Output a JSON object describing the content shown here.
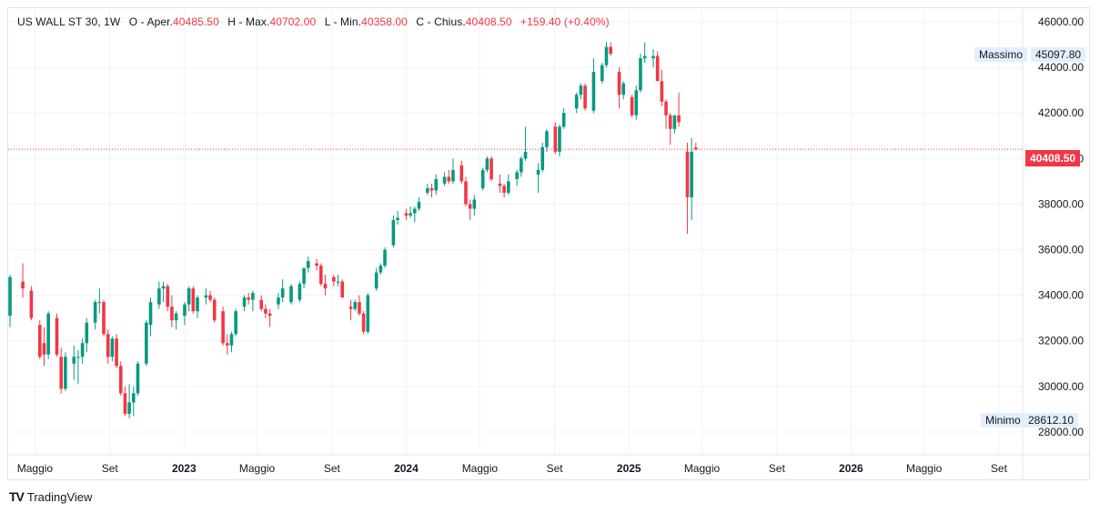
{
  "legend": {
    "symbol": "US WALL ST 30, 1W",
    "open_label": "O - Aper.",
    "open_value": "40485.50",
    "high_label": "H - Max.",
    "high_value": "40702.00",
    "low_label": "L - Min.",
    "low_value": "40358.00",
    "close_label": "C - Chius.",
    "close_value": "40408.50",
    "change": "+159.40 (+0.40%)"
  },
  "tags": {
    "high_label": "Massimo",
    "high_value": "45097.80",
    "low_label": "Minimo",
    "low_value": "28612.10",
    "last_value": "40408.50"
  },
  "brand": {
    "name": "TradingView",
    "logo": "tradingview-logo-icon"
  },
  "colors": {
    "up": "#089981",
    "down": "#f23645",
    "last_line": "#f23645",
    "grid": "#f0f3fa"
  },
  "chart_data": {
    "type": "candlestick",
    "interval": "1W",
    "y_ticks": [
      28000,
      30000,
      32000,
      34000,
      36000,
      38000,
      40000,
      42000,
      44000,
      46000
    ],
    "y_tick_labels": [
      "28000.00",
      "30000.00",
      "32000.00",
      "34000.00",
      "36000.00",
      "38000.00",
      "40000.00",
      "42000.00",
      "44000.00",
      "46000.00"
    ],
    "ylim": [
      27000,
      46600
    ],
    "x_ticks": [
      {
        "label": "Maggio",
        "date": "2022-05-01"
      },
      {
        "label": "Set",
        "date": "2022-09-01"
      },
      {
        "label": "2023",
        "date": "2023-01-01"
      },
      {
        "label": "Maggio",
        "date": "2023-05-01"
      },
      {
        "label": "Set",
        "date": "2023-09-01"
      },
      {
        "label": "2024",
        "date": "2024-01-01"
      },
      {
        "label": "Maggio",
        "date": "2024-05-01"
      },
      {
        "label": "Set",
        "date": "2024-09-01"
      },
      {
        "label": "2025",
        "date": "2025-01-01"
      },
      {
        "label": "Maggio",
        "date": "2025-05-01"
      },
      {
        "label": "Set",
        "date": "2025-09-01"
      },
      {
        "label": "2026",
        "date": "2026-01-01"
      },
      {
        "label": "Maggio",
        "date": "2026-05-01"
      },
      {
        "label": "Set",
        "date": "2026-09-01"
      }
    ],
    "xlim": [
      "2022-03-18",
      "2026-10-10"
    ],
    "last_price": 40408.5,
    "period_high": 45097.8,
    "period_low": 28612.1,
    "candles": [
      {
        "d": "2022-03-21",
        "o": 33100,
        "h": 34900,
        "l": 32600,
        "c": 34800
      },
      {
        "d": "2022-04-11",
        "o": 34600,
        "h": 35400,
        "l": 33900,
        "c": 34300
      },
      {
        "d": "2022-04-25",
        "o": 34200,
        "h": 34400,
        "l": 32900,
        "c": 33000
      },
      {
        "d": "2022-05-09",
        "o": 32700,
        "h": 32900,
        "l": 31200,
        "c": 31300
      },
      {
        "d": "2022-05-16",
        "o": 31900,
        "h": 32600,
        "l": 30900,
        "c": 31400
      },
      {
        "d": "2022-05-23",
        "o": 31400,
        "h": 33300,
        "l": 31200,
        "c": 33200
      },
      {
        "d": "2022-06-06",
        "o": 33000,
        "h": 33200,
        "l": 31300,
        "c": 31400
      },
      {
        "d": "2022-06-13",
        "o": 31300,
        "h": 31700,
        "l": 29700,
        "c": 29900
      },
      {
        "d": "2022-06-20",
        "o": 29900,
        "h": 31500,
        "l": 29800,
        "c": 31300
      },
      {
        "d": "2022-07-04",
        "o": 31000,
        "h": 31800,
        "l": 30300,
        "c": 31300
      },
      {
        "d": "2022-07-11",
        "o": 31300,
        "h": 31600,
        "l": 30100,
        "c": 31300
      },
      {
        "d": "2022-07-18",
        "o": 31300,
        "h": 32100,
        "l": 31000,
        "c": 31900
      },
      {
        "d": "2022-07-25",
        "o": 31900,
        "h": 33000,
        "l": 31500,
        "c": 32800
      },
      {
        "d": "2022-08-08",
        "o": 32800,
        "h": 33800,
        "l": 32500,
        "c": 33700
      },
      {
        "d": "2022-08-15",
        "o": 33700,
        "h": 34300,
        "l": 33200,
        "c": 33700
      },
      {
        "d": "2022-08-22",
        "o": 33700,
        "h": 33800,
        "l": 32200,
        "c": 32300
      },
      {
        "d": "2022-08-29",
        "o": 32300,
        "h": 32500,
        "l": 31000,
        "c": 31300
      },
      {
        "d": "2022-09-05",
        "o": 31300,
        "h": 32200,
        "l": 31100,
        "c": 32100
      },
      {
        "d": "2022-09-12",
        "o": 32100,
        "h": 32300,
        "l": 30800,
        "c": 30900
      },
      {
        "d": "2022-09-19",
        "o": 30900,
        "h": 31100,
        "l": 29600,
        "c": 29700
      },
      {
        "d": "2022-09-26",
        "o": 29700,
        "h": 30000,
        "l": 28700,
        "c": 28800
      },
      {
        "d": "2022-10-03",
        "o": 28800,
        "h": 30100,
        "l": 28600,
        "c": 29300
      },
      {
        "d": "2022-10-10",
        "o": 29300,
        "h": 30000,
        "l": 28700,
        "c": 29700
      },
      {
        "d": "2022-10-17",
        "o": 29700,
        "h": 31100,
        "l": 29600,
        "c": 31000
      },
      {
        "d": "2022-10-31",
        "o": 31000,
        "h": 32900,
        "l": 30900,
        "c": 32800
      },
      {
        "d": "2022-11-07",
        "o": 32700,
        "h": 33900,
        "l": 32200,
        "c": 33700
      },
      {
        "d": "2022-11-21",
        "o": 33600,
        "h": 34600,
        "l": 33400,
        "c": 34300
      },
      {
        "d": "2022-11-28",
        "o": 34300,
        "h": 34600,
        "l": 33700,
        "c": 34400
      },
      {
        "d": "2022-12-05",
        "o": 34400,
        "h": 34500,
        "l": 33300,
        "c": 33500
      },
      {
        "d": "2022-12-12",
        "o": 33500,
        "h": 34000,
        "l": 32600,
        "c": 32900
      },
      {
        "d": "2022-12-19",
        "o": 32900,
        "h": 33300,
        "l": 32500,
        "c": 33200
      },
      {
        "d": "2023-01-02",
        "o": 33100,
        "h": 33700,
        "l": 32700,
        "c": 33600
      },
      {
        "d": "2023-01-09",
        "o": 33600,
        "h": 34400,
        "l": 33300,
        "c": 34300
      },
      {
        "d": "2023-01-16",
        "o": 34300,
        "h": 34400,
        "l": 33200,
        "c": 33300
      },
      {
        "d": "2023-01-23",
        "o": 33300,
        "h": 34000,
        "l": 33000,
        "c": 33900
      },
      {
        "d": "2023-02-06",
        "o": 33900,
        "h": 34300,
        "l": 33600,
        "c": 34000
      },
      {
        "d": "2023-02-13",
        "o": 34000,
        "h": 34200,
        "l": 33700,
        "c": 33800
      },
      {
        "d": "2023-02-20",
        "o": 33800,
        "h": 33900,
        "l": 32800,
        "c": 32900
      },
      {
        "d": "2023-03-06",
        "o": 33300,
        "h": 33500,
        "l": 31800,
        "c": 31900
      },
      {
        "d": "2023-03-13",
        "o": 31900,
        "h": 32300,
        "l": 31400,
        "c": 31800
      },
      {
        "d": "2023-03-20",
        "o": 31800,
        "h": 32400,
        "l": 31500,
        "c": 32300
      },
      {
        "d": "2023-03-27",
        "o": 32300,
        "h": 33400,
        "l": 32200,
        "c": 33300
      },
      {
        "d": "2023-04-10",
        "o": 33500,
        "h": 34000,
        "l": 33300,
        "c": 33900
      },
      {
        "d": "2023-04-17",
        "o": 33900,
        "h": 34100,
        "l": 33600,
        "c": 33800
      },
      {
        "d": "2023-04-24",
        "o": 33800,
        "h": 34200,
        "l": 33300,
        "c": 34100
      },
      {
        "d": "2023-05-08",
        "o": 33800,
        "h": 34000,
        "l": 33300,
        "c": 33400
      },
      {
        "d": "2023-05-15",
        "o": 33400,
        "h": 33600,
        "l": 33000,
        "c": 33200
      },
      {
        "d": "2023-05-22",
        "o": 33200,
        "h": 33400,
        "l": 32600,
        "c": 33100
      },
      {
        "d": "2023-06-05",
        "o": 33600,
        "h": 34100,
        "l": 33400,
        "c": 33900
      },
      {
        "d": "2023-06-12",
        "o": 33900,
        "h": 34700,
        "l": 33700,
        "c": 34300
      },
      {
        "d": "2023-06-26",
        "o": 33700,
        "h": 34500,
        "l": 33600,
        "c": 34400
      },
      {
        "d": "2023-07-10",
        "o": 33800,
        "h": 34600,
        "l": 33700,
        "c": 34500
      },
      {
        "d": "2023-07-17",
        "o": 34500,
        "h": 35100,
        "l": 34300,
        "c": 35200
      },
      {
        "d": "2023-07-24",
        "o": 35200,
        "h": 35700,
        "l": 35000,
        "c": 35500
      },
      {
        "d": "2023-08-07",
        "o": 35400,
        "h": 35600,
        "l": 35100,
        "c": 35300
      },
      {
        "d": "2023-08-14",
        "o": 35300,
        "h": 35400,
        "l": 34400,
        "c": 34500
      },
      {
        "d": "2023-08-21",
        "o": 34500,
        "h": 34900,
        "l": 34000,
        "c": 34300
      },
      {
        "d": "2023-09-04",
        "o": 34800,
        "h": 34900,
        "l": 34400,
        "c": 34600
      },
      {
        "d": "2023-09-11",
        "o": 34600,
        "h": 34900,
        "l": 34400,
        "c": 34600
      },
      {
        "d": "2023-09-18",
        "o": 34600,
        "h": 34700,
        "l": 33900,
        "c": 33900
      },
      {
        "d": "2023-10-02",
        "o": 33500,
        "h": 33800,
        "l": 32900,
        "c": 33400
      },
      {
        "d": "2023-10-09",
        "o": 33400,
        "h": 33800,
        "l": 33300,
        "c": 33700
      },
      {
        "d": "2023-10-16",
        "o": 33700,
        "h": 34000,
        "l": 33100,
        "c": 33200
      },
      {
        "d": "2023-10-23",
        "o": 33200,
        "h": 33300,
        "l": 32300,
        "c": 32400
      },
      {
        "d": "2023-10-30",
        "o": 32400,
        "h": 34100,
        "l": 32300,
        "c": 34000
      },
      {
        "d": "2023-11-13",
        "o": 34300,
        "h": 35200,
        "l": 34200,
        "c": 35000
      },
      {
        "d": "2023-11-20",
        "o": 35000,
        "h": 35400,
        "l": 34900,
        "c": 35300
      },
      {
        "d": "2023-11-27",
        "o": 35300,
        "h": 36100,
        "l": 35200,
        "c": 36000
      },
      {
        "d": "2023-12-11",
        "o": 36200,
        "h": 37500,
        "l": 36100,
        "c": 37300
      },
      {
        "d": "2023-12-18",
        "o": 37300,
        "h": 37700,
        "l": 37100,
        "c": 37400
      },
      {
        "d": "2024-01-01",
        "o": 37600,
        "h": 37800,
        "l": 37300,
        "c": 37500
      },
      {
        "d": "2024-01-08",
        "o": 37500,
        "h": 37900,
        "l": 37400,
        "c": 37600
      },
      {
        "d": "2024-01-15",
        "o": 37600,
        "h": 37900,
        "l": 37200,
        "c": 37800
      },
      {
        "d": "2024-01-22",
        "o": 37800,
        "h": 38300,
        "l": 37700,
        "c": 38100
      },
      {
        "d": "2024-02-05",
        "o": 38500,
        "h": 38900,
        "l": 38400,
        "c": 38700
      },
      {
        "d": "2024-02-12",
        "o": 38700,
        "h": 38900,
        "l": 38300,
        "c": 38600
      },
      {
        "d": "2024-02-19",
        "o": 38600,
        "h": 39300,
        "l": 38400,
        "c": 39100
      },
      {
        "d": "2024-03-04",
        "o": 38900,
        "h": 39400,
        "l": 38800,
        "c": 39200
      },
      {
        "d": "2024-03-11",
        "o": 39200,
        "h": 39500,
        "l": 38900,
        "c": 39000
      },
      {
        "d": "2024-03-18",
        "o": 39000,
        "h": 40000,
        "l": 38900,
        "c": 39500
      },
      {
        "d": "2024-04-01",
        "o": 39700,
        "h": 39900,
        "l": 38900,
        "c": 39000
      },
      {
        "d": "2024-04-08",
        "o": 39000,
        "h": 39200,
        "l": 37900,
        "c": 38000
      },
      {
        "d": "2024-04-15",
        "o": 38000,
        "h": 38200,
        "l": 37300,
        "c": 37800
      },
      {
        "d": "2024-04-22",
        "o": 37800,
        "h": 38400,
        "l": 37500,
        "c": 38200
      },
      {
        "d": "2024-05-06",
        "o": 38700,
        "h": 39600,
        "l": 38600,
        "c": 39500
      },
      {
        "d": "2024-05-13",
        "o": 39500,
        "h": 40100,
        "l": 39400,
        "c": 40000
      },
      {
        "d": "2024-05-20",
        "o": 40000,
        "h": 40100,
        "l": 39000,
        "c": 39100
      },
      {
        "d": "2024-06-03",
        "o": 38900,
        "h": 39300,
        "l": 38500,
        "c": 38800
      },
      {
        "d": "2024-06-10",
        "o": 38800,
        "h": 38900,
        "l": 38300,
        "c": 38500
      },
      {
        "d": "2024-06-17",
        "o": 38500,
        "h": 39300,
        "l": 38400,
        "c": 39000
      },
      {
        "d": "2024-07-01",
        "o": 39100,
        "h": 39500,
        "l": 38800,
        "c": 39400
      },
      {
        "d": "2024-07-08",
        "o": 39400,
        "h": 40100,
        "l": 39200,
        "c": 40000
      },
      {
        "d": "2024-07-15",
        "o": 40000,
        "h": 41400,
        "l": 39900,
        "c": 40300
      },
      {
        "d": "2024-08-05",
        "o": 39300,
        "h": 39800,
        "l": 38500,
        "c": 39500
      },
      {
        "d": "2024-08-12",
        "o": 39500,
        "h": 40700,
        "l": 39400,
        "c": 40500
      },
      {
        "d": "2024-08-19",
        "o": 40500,
        "h": 41300,
        "l": 40300,
        "c": 41200
      },
      {
        "d": "2024-09-02",
        "o": 41400,
        "h": 41600,
        "l": 40200,
        "c": 40300
      },
      {
        "d": "2024-09-09",
        "o": 40300,
        "h": 41500,
        "l": 40100,
        "c": 41400
      },
      {
        "d": "2024-09-16",
        "o": 41400,
        "h": 42200,
        "l": 41300,
        "c": 42000
      },
      {
        "d": "2024-10-07",
        "o": 42200,
        "h": 42900,
        "l": 42000,
        "c": 42800
      },
      {
        "d": "2024-10-14",
        "o": 42800,
        "h": 43300,
        "l": 42600,
        "c": 43200
      },
      {
        "d": "2024-10-21",
        "o": 43200,
        "h": 43300,
        "l": 42100,
        "c": 42200
      },
      {
        "d": "2024-11-04",
        "o": 42100,
        "h": 44400,
        "l": 42000,
        "c": 43800
      },
      {
        "d": "2024-11-18",
        "o": 43400,
        "h": 44200,
        "l": 43300,
        "c": 44100
      },
      {
        "d": "2024-11-25",
        "o": 44100,
        "h": 45100,
        "l": 44000,
        "c": 44900
      },
      {
        "d": "2024-12-02",
        "o": 44900,
        "h": 45100,
        "l": 44500,
        "c": 44600
      },
      {
        "d": "2024-12-16",
        "o": 43800,
        "h": 44000,
        "l": 42200,
        "c": 42800
      },
      {
        "d": "2024-12-23",
        "o": 42800,
        "h": 43400,
        "l": 42600,
        "c": 43300
      },
      {
        "d": "2025-01-06",
        "o": 42700,
        "h": 42800,
        "l": 41800,
        "c": 41900
      },
      {
        "d": "2025-01-13",
        "o": 41900,
        "h": 43200,
        "l": 41700,
        "c": 43000
      },
      {
        "d": "2025-01-20",
        "o": 43000,
        "h": 44600,
        "l": 42900,
        "c": 44400
      },
      {
        "d": "2025-01-27",
        "o": 44400,
        "h": 45100,
        "l": 44200,
        "c": 44500
      },
      {
        "d": "2025-02-10",
        "o": 44400,
        "h": 44800,
        "l": 44000,
        "c": 44500
      },
      {
        "d": "2025-02-17",
        "o": 44500,
        "h": 44700,
        "l": 43400,
        "c": 43400
      },
      {
        "d": "2025-02-24",
        "o": 43400,
        "h": 43900,
        "l": 42300,
        "c": 42500
      },
      {
        "d": "2025-03-03",
        "o": 42500,
        "h": 42600,
        "l": 41300,
        "c": 41900
      },
      {
        "d": "2025-03-10",
        "o": 41900,
        "h": 42000,
        "l": 40600,
        "c": 41300
      },
      {
        "d": "2025-03-17",
        "o": 41300,
        "h": 41900,
        "l": 41100,
        "c": 41900
      },
      {
        "d": "2025-03-24",
        "o": 41900,
        "h": 42900,
        "l": 41400,
        "c": 41600
      },
      {
        "d": "2025-04-07",
        "o": 40300,
        "h": 40700,
        "l": 36700,
        "c": 38300
      },
      {
        "d": "2025-04-14",
        "o": 38300,
        "h": 40900,
        "l": 37300,
        "c": 40300
      },
      {
        "d": "2025-04-21",
        "o": 40485.5,
        "h": 40702,
        "l": 40358,
        "c": 40408.5
      }
    ]
  }
}
